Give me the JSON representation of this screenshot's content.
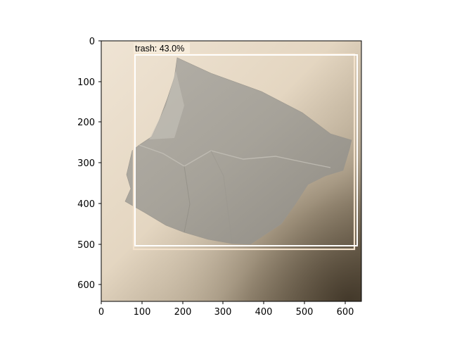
{
  "figure": {
    "x_ticks": [
      "0",
      "100",
      "200",
      "300",
      "400",
      "500",
      "600"
    ],
    "y_ticks": [
      "0",
      "100",
      "200",
      "300",
      "400",
      "500",
      "600"
    ],
    "x_range": [
      0,
      640
    ],
    "y_range": [
      640,
      0
    ],
    "y_inverted": true,
    "image_description_colors": {
      "background_top": "#ede2d1",
      "background_bottom_right": "#5a4f3e",
      "tissue": "#a8a49b"
    }
  },
  "detection": {
    "label": "trash: 43.0%",
    "class": "trash",
    "confidence_percent": 43.0,
    "box_color": "#ffffff",
    "label_background": "#f6ebda",
    "box_image_units": {
      "x0": 80,
      "y0": 33,
      "x1": 627,
      "y1": 510
    }
  },
  "colors": {
    "axis": "#000000",
    "box_outer": "#f3e2cc",
    "box_inner": "#ffffff"
  }
}
